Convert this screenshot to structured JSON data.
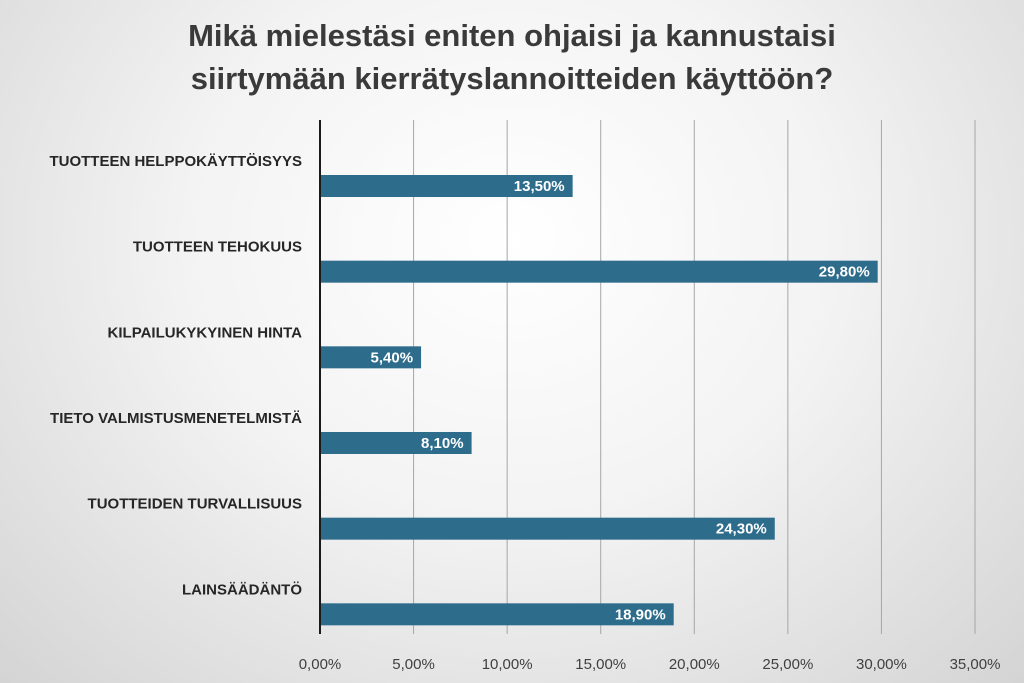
{
  "chart_data": {
    "type": "bar",
    "orientation": "horizontal",
    "title": "Mikä mielestäsi eniten ohjaisi ja kannustaisi siirtymään kierrätyslannoitteiden käyttöön?",
    "title_lines": [
      "Mikä mielestäsi eniten ohjaisi ja kannustaisi",
      "siirtymään kierrätyslannoitteiden käyttöön?"
    ],
    "categories": [
      "TUOTTEEN HELPPOKÄYTTÖISYYS",
      "TUOTTEEN TEHOKUUS",
      "KILPAILUKYKYINEN HINTA",
      "TIETO VALMISTUSMENETELMISTÄ",
      "TUOTTEIDEN TURVALLISUUS",
      "LAINSÄÄDÄNTÖ"
    ],
    "values": [
      13.5,
      29.8,
      5.4,
      8.1,
      24.3,
      18.9
    ],
    "value_labels": [
      "13,50%",
      "29,80%",
      "5,40%",
      "8,10%",
      "24,30%",
      "18,90%"
    ],
    "xlim": [
      0,
      35
    ],
    "x_ticks": [
      0,
      5,
      10,
      15,
      20,
      25,
      30,
      35
    ],
    "x_tick_labels": [
      "0,00%",
      "5,00%",
      "10,00%",
      "15,00%",
      "20,00%",
      "25,00%",
      "30,00%",
      "35,00%"
    ],
    "xlabel": "",
    "ylabel": "",
    "grid": true,
    "legend": "none",
    "bar_color": "#2e6c8c",
    "grid_color": "#a6a6a6",
    "axis_color": "#1a1a1a"
  }
}
